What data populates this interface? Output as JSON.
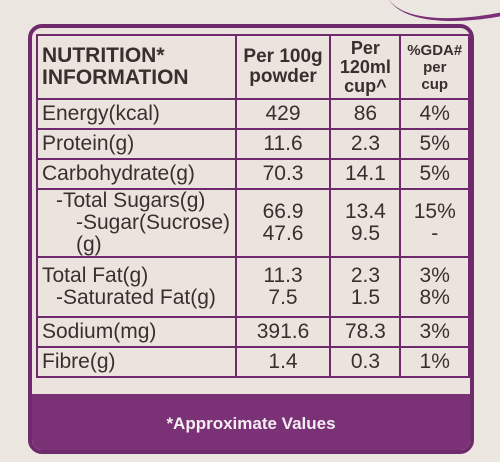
{
  "header": {
    "col1": [
      "NUTRITION*",
      "INFORMATION"
    ],
    "col2": [
      "Per 100g",
      "powder"
    ],
    "col3": [
      "Per",
      "120ml",
      "cup^"
    ],
    "col4": [
      "%GDA#",
      "per",
      "cup"
    ]
  },
  "rows": [
    {
      "label": "Energy(kcal)",
      "per100g": "429",
      "percup": "86",
      "gda": "4%"
    },
    {
      "label": "Protein(g)",
      "per100g": "11.6",
      "percup": "2.3",
      "gda": "5%"
    },
    {
      "label": "Carbohydrate(g)",
      "per100g": "70.3",
      "percup": "14.1",
      "gda": "5%"
    },
    {
      "label": "-Total Sugars(g)",
      "label2": "-Sugar(Sucrose)(g)",
      "per100g": "66.9",
      "per100g2": "47.6",
      "percup": "13.4",
      "percup2": "9.5",
      "gda": "15%",
      "gda2": "-"
    },
    {
      "label": "Total Fat(g)",
      "label2": "-Saturated Fat(g)",
      "per100g": "11.3",
      "per100g2": "7.5",
      "percup": "2.3",
      "percup2": "1.5",
      "gda": "3%",
      "gda2": "8%"
    },
    {
      "label": "Sodium(mg)",
      "per100g": "391.6",
      "percup": "78.3",
      "gda": "3%"
    },
    {
      "label": "Fibre(g)",
      "per100g": "1.4",
      "percup": "0.3",
      "gda": "1%"
    }
  ],
  "footer": "*Approximate Values",
  "colors": {
    "border": "#6f2a6c",
    "band": "#7b3176",
    "text": "#3a2f2d",
    "background": "#ebe3dd"
  }
}
